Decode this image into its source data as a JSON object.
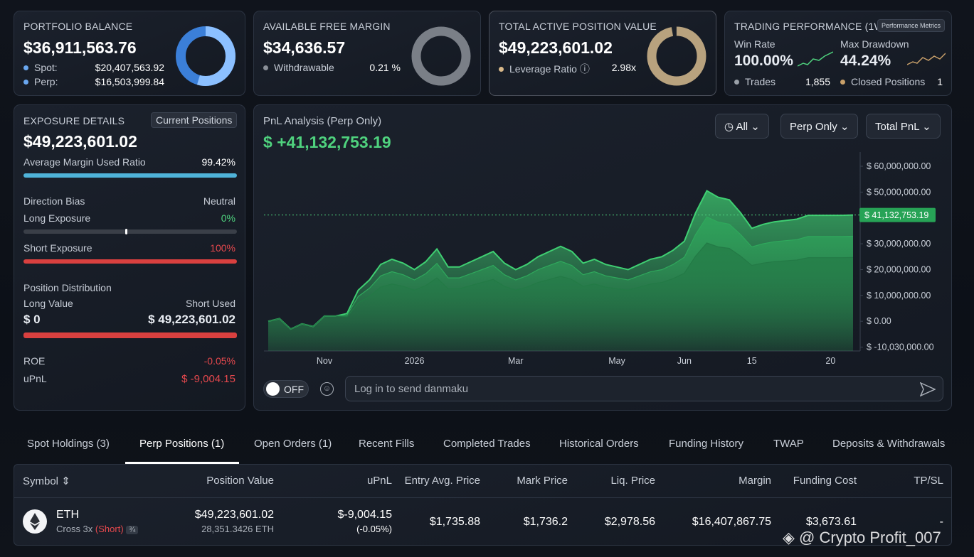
{
  "portfolio": {
    "title": "PORTFOLIO BALANCE",
    "value": "$36,911,563.76",
    "rows": [
      {
        "label": "Spot:",
        "value": "$20,407,563.92"
      },
      {
        "label": "Perp:",
        "value": "$16,503,999.84"
      }
    ]
  },
  "margin": {
    "title": "AVAILABLE FREE MARGIN",
    "value": "$34,636.57",
    "label": "Withdrawable",
    "stat": "0.21 %"
  },
  "position_value": {
    "title": "TOTAL ACTIVE POSITION VALUE",
    "value": "$49,223,601.02",
    "label": "Leverage Ratio",
    "stat": "2.98x"
  },
  "performance": {
    "title": "TRADING PERFORMANCE (1W)",
    "badge": "Performance Metrics",
    "win_rate_label": "Win Rate",
    "win_rate": "100.00%",
    "drawdown_label": "Max Drawdown",
    "drawdown": "44.24%",
    "trades_label": "Trades",
    "trades": "1,855",
    "closed_label": "Closed Positions",
    "closed": "1"
  },
  "exposure": {
    "title": "EXPOSURE DETAILS",
    "badge": "Current Positions",
    "value": "$49,223,601.02",
    "margin_ratio_label": "Average Margin Used Ratio",
    "margin_ratio": "99.42%",
    "bias_label": "Direction Bias",
    "bias": "Neutral",
    "long_label": "Long Exposure",
    "long": "0%",
    "short_label": "Short Exposure",
    "short": "100%",
    "distribution_label": "Position Distribution",
    "long_value_label": "Long Value",
    "short_used_label": "Short Used",
    "long_value": "$ 0",
    "short_used": "$ 49,223,601.02",
    "roe_label": "ROE",
    "roe": "-0.05%",
    "upnl_label": "uPnL",
    "upnl": "$ -9,004.15"
  },
  "filters": [
    "All",
    "Perp Only",
    "Total PnL"
  ],
  "danmaku": {
    "toggle": "OFF",
    "placeholder": "Log in to send danmaku"
  },
  "chart_data": {
    "type": "area",
    "title": "PnL Analysis (Perp Only)",
    "subtitle": "$ +41,132,753.19",
    "categories": [
      null,
      null,
      null,
      null,
      null,
      "Nov",
      null,
      null,
      null,
      null,
      null,
      null,
      null,
      "2026",
      null,
      null,
      null,
      null,
      null,
      null,
      null,
      null,
      "Mar",
      null,
      null,
      null,
      null,
      null,
      null,
      null,
      null,
      "May",
      null,
      null,
      null,
      null,
      null,
      "Jun",
      null,
      null,
      null,
      null,
      null,
      "15",
      null,
      null,
      null,
      null,
      null,
      null,
      "20",
      null,
      null
    ],
    "series": [
      {
        "color": "#3fcf72",
        "values": [
          0,
          1000000,
          -3000000,
          -1000000,
          -2000000,
          2000000,
          2000000,
          3000000,
          12000000,
          16000000,
          22000000,
          24000000,
          22500000,
          20000000,
          23000000,
          28000000,
          21000000,
          21000000,
          23000000,
          25000000,
          27000000,
          22500000,
          20000000,
          22000000,
          25000000,
          27000000,
          29000000,
          27000000,
          22500000,
          24000000,
          22000000,
          21000000,
          20000000,
          22000000,
          24000000,
          25000000,
          27500000,
          31000000,
          42000000,
          50500000,
          48000000,
          47000000,
          42000000,
          36000000,
          37500000,
          38500000,
          39000000,
          39500000,
          41000000,
          41000000,
          41000000,
          41000000,
          41132753.19
        ]
      },
      {
        "color": "#2fa85c",
        "values": [
          0,
          1000000,
          -3000000,
          -1000000,
          -2000000,
          2000000,
          2000000,
          2400000,
          9600000,
          12800000,
          17600000,
          19200000,
          18000000,
          16000000,
          18400000,
          22400000,
          16800000,
          16800000,
          18400000,
          20000000,
          21600000,
          18000000,
          16000000,
          17600000,
          20000000,
          21600000,
          23200000,
          21600000,
          18000000,
          19200000,
          17600000,
          16800000,
          16000000,
          17600000,
          19200000,
          20000000,
          22000000,
          24800000,
          33600000,
          40400000,
          38400000,
          37600000,
          33600000,
          28800000,
          30000000,
          30800000,
          31200000,
          31600000,
          32800000,
          32800000,
          32800000,
          32800000,
          32900000
        ]
      },
      {
        "color": "#237a46",
        "values": [
          0,
          1000000,
          -3000000,
          -1000000,
          -2000000,
          2000000,
          2000000,
          1800000,
          7200000,
          9600000,
          13200000,
          14400000,
          13500000,
          12000000,
          13800000,
          16800000,
          12600000,
          12600000,
          13800000,
          15000000,
          16200000,
          13500000,
          12000000,
          13200000,
          15000000,
          16200000,
          17400000,
          16200000,
          13500000,
          14400000,
          13200000,
          12600000,
          12000000,
          13200000,
          14400000,
          15000000,
          16500000,
          18600000,
          25200000,
          30300000,
          28800000,
          28200000,
          25200000,
          21600000,
          22500000,
          23100000,
          23400000,
          23700000,
          24600000,
          24600000,
          24600000,
          24600000,
          24700000
        ]
      }
    ],
    "current": {
      "value": 41132753.19,
      "label": "$ 41,132,753.19"
    },
    "ylim": [
      -11500000,
      65500000
    ],
    "yticks": [
      {
        "value": 60000000,
        "label": "$ 60,000,000.00"
      },
      {
        "value": 50000000,
        "label": "$ 50,000,000.00"
      },
      {
        "value": 30000000,
        "label": "$ 30,000,000.00"
      },
      {
        "value": 20000000,
        "label": "$ 20,000,000.00"
      },
      {
        "value": 10000000,
        "label": "$ 10,000,000.00"
      },
      {
        "value": 0,
        "label": "$ 0.00"
      },
      {
        "value": -10030000,
        "label": "$ -10,030,000.00"
      }
    ]
  },
  "tabs": [
    "Spot Holdings (3)",
    "Perp Positions (1)",
    "Open Orders (1)",
    "Recent Fills",
    "Completed Trades",
    "Historical Orders",
    "Funding History",
    "TWAP",
    "Deposits & Withdrawals"
  ],
  "table": {
    "columns": [
      "Symbol",
      "Position Value",
      "uPnL",
      "Entry Avg. Price",
      "Mark Price",
      "Liq. Price",
      "Margin",
      "Funding Cost",
      "TP/SL"
    ],
    "rows": [
      {
        "symbol": "ETH",
        "mode": "Cross 3x",
        "side": "(Short)",
        "position_value": "$49,223,601.02",
        "size": "28,351.3426 ETH",
        "upnl": "$-9,004.15",
        "upnl_pct": "(-0.05%)",
        "entry": "$1,735.88",
        "mark": "$1,736.2",
        "liq": "$2,978.56",
        "margin": "$16,407,867.75",
        "funding": "$3,673.61",
        "tpsl": "-"
      }
    ]
  },
  "watermark": "@ Crypto Profit_007"
}
